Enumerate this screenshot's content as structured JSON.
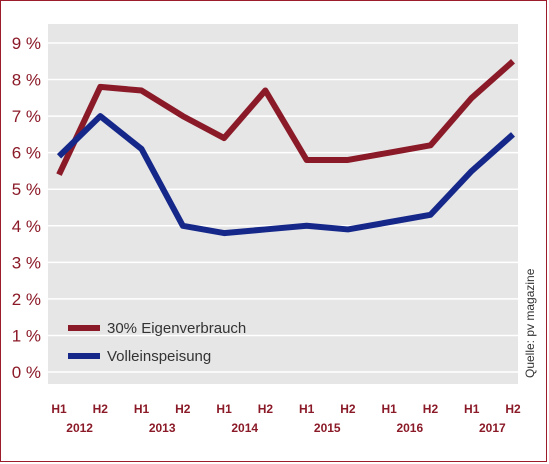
{
  "chart_data": {
    "type": "line",
    "title": "",
    "xlabel": "",
    "ylabel": "",
    "ylim": [
      0,
      9
    ],
    "y_ticks": [
      "0 %",
      "1 %",
      "2 %",
      "3 %",
      "4 %",
      "5 %",
      "6 %",
      "7 %",
      "8 %",
      "9 %"
    ],
    "categories": [
      "H1",
      "H2",
      "H1",
      "H2",
      "H1",
      "H2",
      "H1",
      "H2",
      "H1",
      "H2",
      "H1",
      "H2"
    ],
    "years": [
      "2012",
      "2013",
      "2014",
      "2015",
      "2016",
      "2017"
    ],
    "series": [
      {
        "name": "30% Eigenverbrauch",
        "color": "#8b1a28",
        "values": [
          5.4,
          7.8,
          7.7,
          7.0,
          6.4,
          7.7,
          5.8,
          5.8,
          6.0,
          6.2,
          7.5,
          8.5
        ]
      },
      {
        "name": "Volleinspeisung",
        "color": "#15288a",
        "values": [
          5.9,
          7.0,
          6.1,
          4.0,
          3.8,
          3.9,
          4.0,
          3.9,
          4.1,
          4.3,
          5.5,
          6.5
        ]
      }
    ],
    "legend_position": "bottom-left",
    "grid": true,
    "source": "Quelle: pv magazine",
    "colors": {
      "background": "#e6e6e6",
      "grid": "#ffffff",
      "axis_text": "#8b1a28",
      "frame": "#9c1c2c"
    }
  }
}
